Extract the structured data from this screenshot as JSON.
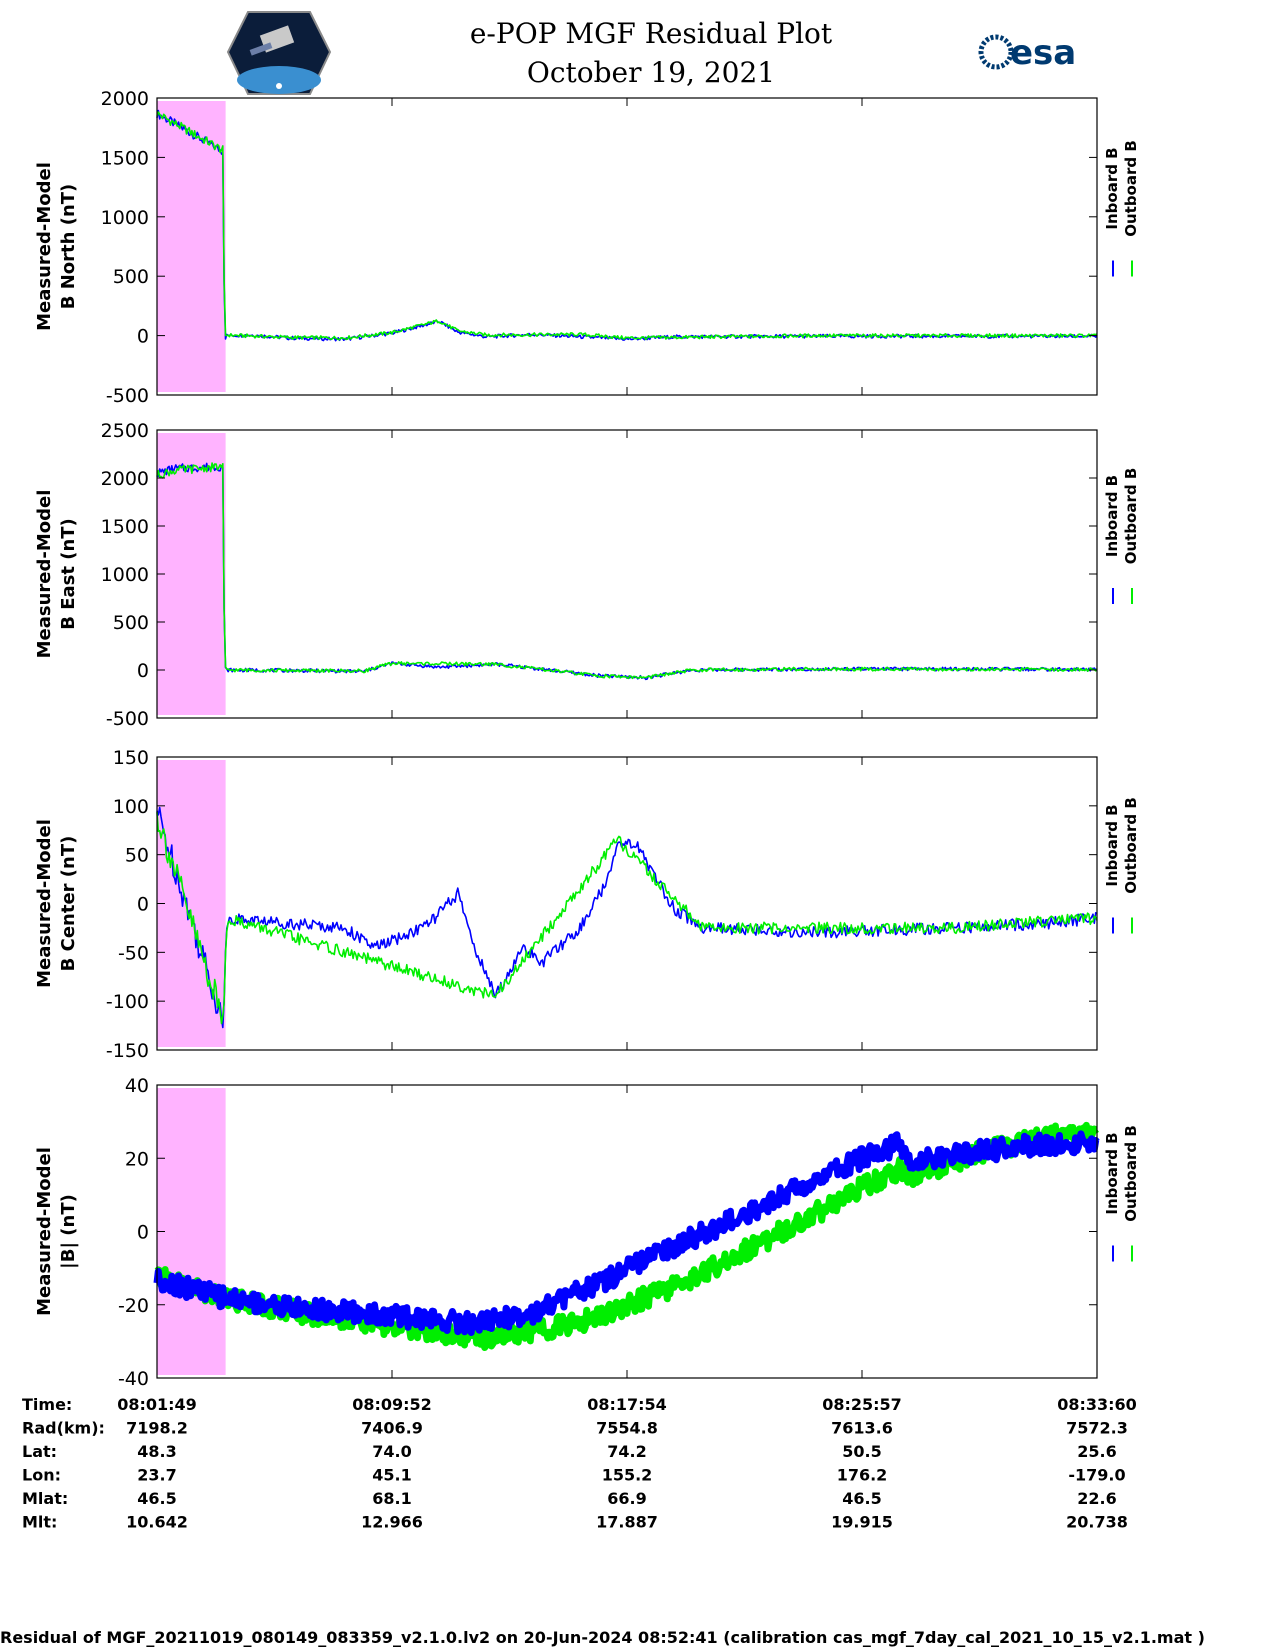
{
  "header": {
    "title": "e-POP MGF Residual Plot",
    "date": "October 19, 2021",
    "left_logo": "cassiope-mission-logo",
    "right_logo_text": "esa"
  },
  "colors": {
    "inboard": "#0000ff",
    "outboard": "#00ee00",
    "shade": "#ffb3ff"
  },
  "chart_data": [
    {
      "type": "line",
      "ylabel": [
        "Measured-Model",
        "B North (nT)"
      ],
      "ylim": [
        -500,
        2000
      ],
      "yticks": [
        -500,
        0,
        500,
        1000,
        1500,
        2000
      ],
      "yticklabels": [
        "-500",
        "0",
        "500",
        "1000",
        "1500",
        "2000"
      ],
      "legend": [
        "Inboard B",
        "Outboard B"
      ],
      "legend_position": "right",
      "series": [
        {
          "name": "Inboard B",
          "color": "#0000ff",
          "points": [
            [
              0,
              1870
            ],
            [
              0.07,
              1550
            ],
            [
              0.072,
              0
            ],
            [
              0.1,
              5
            ],
            [
              0.14,
              -20
            ],
            [
              0.2,
              -30
            ],
            [
              0.25,
              20
            ],
            [
              0.3,
              120
            ],
            [
              0.32,
              30
            ],
            [
              0.35,
              -10
            ],
            [
              0.4,
              10
            ],
            [
              0.5,
              -30
            ],
            [
              0.55,
              -10
            ],
            [
              0.7,
              -5
            ],
            [
              0.85,
              -5
            ],
            [
              1.0,
              -5
            ]
          ]
        },
        {
          "name": "Outboard B",
          "color": "#00ee00",
          "points": [
            [
              0,
              1870
            ],
            [
              0.07,
              1560
            ],
            [
              0.072,
              5
            ],
            [
              0.14,
              -15
            ],
            [
              0.2,
              -20
            ],
            [
              0.25,
              25
            ],
            [
              0.3,
              125
            ],
            [
              0.32,
              40
            ],
            [
              0.35,
              5
            ],
            [
              0.45,
              10
            ],
            [
              0.5,
              -20
            ],
            [
              0.7,
              0
            ],
            [
              1.0,
              0
            ]
          ]
        }
      ]
    },
    {
      "type": "line",
      "ylabel": [
        "Measured-Model",
        "B East (nT)"
      ],
      "ylim": [
        -500,
        2500
      ],
      "yticks": [
        -500,
        0,
        500,
        1000,
        1500,
        2000,
        2500
      ],
      "yticklabels": [
        "-500",
        "0",
        "500",
        "1000",
        "1500",
        "2000",
        "2500"
      ],
      "legend": [
        "Inboard B",
        "Outboard B"
      ],
      "legend_position": "right",
      "series": [
        {
          "name": "Inboard B",
          "color": "#0000ff",
          "points": [
            [
              0,
              2050
            ],
            [
              0.02,
              2100
            ],
            [
              0.07,
              2120
            ],
            [
              0.072,
              0
            ],
            [
              0.15,
              -5
            ],
            [
              0.22,
              -15
            ],
            [
              0.25,
              70
            ],
            [
              0.3,
              30
            ],
            [
              0.36,
              60
            ],
            [
              0.4,
              20
            ],
            [
              0.47,
              -60
            ],
            [
              0.52,
              -80
            ],
            [
              0.57,
              0
            ],
            [
              0.7,
              10
            ],
            [
              0.85,
              10
            ],
            [
              1.0,
              5
            ]
          ]
        },
        {
          "name": "Outboard B",
          "color": "#00ee00",
          "points": [
            [
              0,
              2030
            ],
            [
              0.02,
              2080
            ],
            [
              0.07,
              2120
            ],
            [
              0.072,
              0
            ],
            [
              0.22,
              -10
            ],
            [
              0.25,
              70
            ],
            [
              0.36,
              60
            ],
            [
              0.47,
              -60
            ],
            [
              0.52,
              -80
            ],
            [
              0.57,
              0
            ],
            [
              0.7,
              10
            ],
            [
              1.0,
              5
            ]
          ]
        }
      ]
    },
    {
      "type": "line",
      "ylabel": [
        "Measured-Model",
        "B Center (nT)"
      ],
      "ylim": [
        -150,
        150
      ],
      "yticks": [
        -150,
        -100,
        -50,
        0,
        50,
        100,
        150
      ],
      "yticklabels": [
        "-150",
        "-100",
        "-50",
        "0",
        "50",
        "100",
        "150"
      ],
      "legend": [
        "Inboard B",
        "Outboard B"
      ],
      "legend_position": "right",
      "series": [
        {
          "name": "Inboard B",
          "color": "#0000ff",
          "points": [
            [
              0,
              95
            ],
            [
              0.07,
              -120
            ],
            [
              0.075,
              -15
            ],
            [
              0.2,
              -25
            ],
            [
              0.23,
              -45
            ],
            [
              0.26,
              -35
            ],
            [
              0.29,
              -20
            ],
            [
              0.32,
              10
            ],
            [
              0.34,
              -50
            ],
            [
              0.36,
              -95
            ],
            [
              0.39,
              -45
            ],
            [
              0.41,
              -60
            ],
            [
              0.45,
              -25
            ],
            [
              0.48,
              25
            ],
            [
              0.49,
              65
            ],
            [
              0.51,
              60
            ],
            [
              0.55,
              -5
            ],
            [
              0.58,
              -25
            ],
            [
              0.7,
              -30
            ],
            [
              0.85,
              -25
            ],
            [
              0.95,
              -20
            ],
            [
              1.0,
              -15
            ]
          ]
        },
        {
          "name": "Outboard B",
          "color": "#00ee00",
          "points": [
            [
              0,
              90
            ],
            [
              0.07,
              -118
            ],
            [
              0.075,
              -15
            ],
            [
              0.36,
              -95
            ],
            [
              0.49,
              65
            ],
            [
              0.58,
              -25
            ],
            [
              0.85,
              -25
            ],
            [
              0.99,
              -15
            ],
            [
              1.0,
              -20
            ]
          ]
        }
      ]
    },
    {
      "type": "line",
      "ylabel": [
        "Measured-Model",
        "|B| (nT)"
      ],
      "ylim": [
        -40,
        40
      ],
      "yticks": [
        -40,
        -20,
        0,
        20,
        40
      ],
      "yticklabels": [
        "-40",
        "-20",
        "0",
        "20",
        "40"
      ],
      "legend": [
        "Inboard B",
        "Outboard B"
      ],
      "legend_position": "right",
      "series": [
        {
          "name": "Outboard B",
          "color": "#00ee00",
          "points": [
            [
              0,
              -12
            ],
            [
              0.07,
              -18
            ],
            [
              0.15,
              -22
            ],
            [
              0.25,
              -26
            ],
            [
              0.35,
              -29
            ],
            [
              0.45,
              -25
            ],
            [
              0.55,
              -15
            ],
            [
              0.62,
              -6
            ],
            [
              0.68,
              2
            ],
            [
              0.75,
              12
            ],
            [
              0.79,
              17
            ],
            [
              0.8,
              15
            ],
            [
              0.88,
              22
            ],
            [
              0.95,
              26
            ],
            [
              1.0,
              27
            ]
          ]
        },
        {
          "name": "Inboard B",
          "color": "#0000ff",
          "points": [
            [
              0,
              -13
            ],
            [
              0.07,
              -18
            ],
            [
              0.15,
              -21
            ],
            [
              0.25,
              -23
            ],
            [
              0.34,
              -25
            ],
            [
              0.4,
              -22
            ],
            [
              0.48,
              -13
            ],
            [
              0.55,
              -4
            ],
            [
              0.62,
              4
            ],
            [
              0.68,
              12
            ],
            [
              0.75,
              20
            ],
            [
              0.79,
              24
            ],
            [
              0.8,
              19
            ],
            [
              0.88,
              22
            ],
            [
              0.95,
              24
            ],
            [
              1.0,
              24
            ]
          ]
        }
      ]
    }
  ],
  "x_axis": {
    "tick_positions": [
      0,
      0.25,
      0.5,
      0.75,
      1.0
    ],
    "shaded_range": [
      0,
      0.073
    ]
  },
  "orbit_table": {
    "rows": [
      {
        "label": "Time:",
        "values": [
          "08:01:49",
          "08:09:52",
          "08:17:54",
          "08:25:57",
          "08:33:60"
        ]
      },
      {
        "label": "Rad(km):",
        "values": [
          "7198.2",
          "7406.9",
          "7554.8",
          "7613.6",
          "7572.3"
        ]
      },
      {
        "label": "Lat:",
        "values": [
          "48.3",
          "74.0",
          "74.2",
          "50.5",
          "25.6"
        ]
      },
      {
        "label": "Lon:",
        "values": [
          "23.7",
          "45.1",
          "155.2",
          "176.2",
          "-179.0"
        ]
      },
      {
        "label": "Mlat:",
        "values": [
          "46.5",
          "68.1",
          "66.9",
          "46.5",
          "22.6"
        ]
      },
      {
        "label": "Mlt:",
        "values": [
          "10.642",
          "12.966",
          "17.887",
          "19.915",
          "20.738"
        ]
      }
    ]
  },
  "footer": {
    "text": "Residual of MGF_20211019_080149_083359_v2.1.0.lv2 on 20-Jun-2024 08:52:41 (calibration cas_mgf_7day_cal_2021_10_15_v2.1.mat )"
  }
}
